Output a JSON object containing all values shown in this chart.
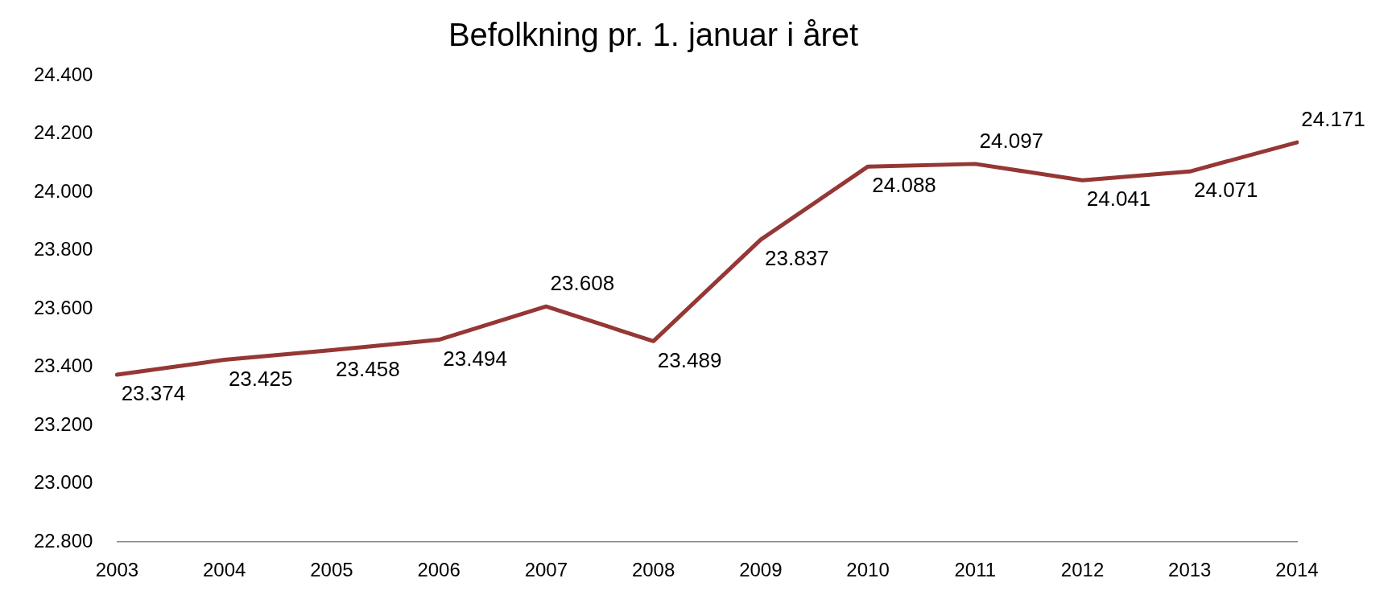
{
  "chart_data": {
    "type": "line",
    "title": "Befolkning pr. 1. januar i året",
    "categories": [
      "2003",
      "2004",
      "2005",
      "2006",
      "2007",
      "2008",
      "2009",
      "2010",
      "2011",
      "2012",
      "2013",
      "2014"
    ],
    "series": [
      {
        "color": "#953735",
        "values": [
          23374,
          23425,
          23458,
          23494,
          23608,
          23489,
          23837,
          24088,
          24097,
          24041,
          24071,
          24171
        ],
        "value_labels": [
          "23.374",
          "23.425",
          "23.458",
          "23.494",
          "23.608",
          "23.489",
          "23.837",
          "24.088",
          "24.097",
          "24.041",
          "24.071",
          "24.171"
        ]
      }
    ],
    "ylim": [
      22800,
      24400
    ],
    "yticks": [
      {
        "value": 22800,
        "label": "22.800"
      },
      {
        "value": 23000,
        "label": "23.000"
      },
      {
        "value": 23200,
        "label": "23.200"
      },
      {
        "value": 23400,
        "label": "23.400"
      },
      {
        "value": 23600,
        "label": "23.600"
      },
      {
        "value": 23800,
        "label": "23.800"
      },
      {
        "value": 24000,
        "label": "24.000"
      },
      {
        "value": 24200,
        "label": "24.200"
      },
      {
        "value": 24400,
        "label": "24.400"
      }
    ],
    "grid": false,
    "legend": false,
    "marker": "none",
    "line_style": "solid"
  }
}
